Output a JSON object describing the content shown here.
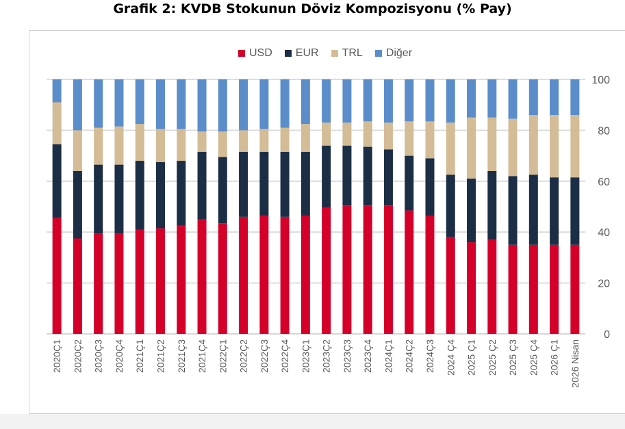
{
  "title": "Grafik 2: KVDB Stokunun Döviz Kompozisyonu (% Pay)",
  "chart_data": {
    "type": "bar",
    "stacked": true,
    "categories": [
      "2020Ç1",
      "2020Ç2",
      "2020Ç3",
      "2020Ç4",
      "2021Ç1",
      "2021Ç2",
      "2021Ç3",
      "2021Ç4",
      "2022Ç1",
      "2022Ç2",
      "2022Ç3",
      "2022Ç4",
      "2023Ç1",
      "2023Ç2",
      "2023Ç3",
      "2023Ç4",
      "2024Ç1",
      "2024Ç2",
      "2024Ç3",
      "2024 Ç4",
      "2025 Ç1",
      "2025 Ç2",
      "2025 Ç3",
      "2025 Ç4",
      "2026 Ç1",
      "2026 Nisan"
    ],
    "series": [
      {
        "name": "USD",
        "color": "#d4002a",
        "values": [
          45.5,
          37.5,
          39.5,
          39.5,
          41,
          41.5,
          42.5,
          45,
          43.5,
          46,
          46.5,
          46,
          46.5,
          49.5,
          50.5,
          50.5,
          50.5,
          48.5,
          46.5,
          38,
          36,
          37,
          35,
          35,
          35,
          35
        ]
      },
      {
        "name": "EUR",
        "color": "#1b2e45",
        "values": [
          29,
          26.5,
          27,
          27,
          27,
          26,
          25.5,
          26.5,
          26,
          25.5,
          25,
          25.5,
          25,
          24.5,
          23.5,
          23,
          22,
          21.5,
          22.5,
          24.5,
          25,
          27,
          27,
          27.5,
          26.5,
          26.5
        ]
      },
      {
        "name": "TRL",
        "color": "#d3bc96",
        "values": [
          16.5,
          16,
          14.5,
          15,
          14.5,
          13,
          12.5,
          8,
          10,
          8.5,
          9,
          9.5,
          11,
          9,
          9,
          10,
          10.5,
          13.5,
          14.5,
          20.5,
          24,
          21,
          22.5,
          23.5,
          24.5,
          24.5
        ]
      },
      {
        "name": "Diğer",
        "color": "#5b8dcb",
        "values": [
          9,
          20,
          19,
          18.5,
          17.5,
          19.5,
          19.5,
          20.5,
          20.5,
          20,
          19.5,
          19,
          17.5,
          17,
          17,
          16.5,
          17,
          16.5,
          16.5,
          17,
          15,
          15,
          15.5,
          14,
          14,
          14
        ]
      }
    ],
    "yticks": [
      0,
      20,
      40,
      60,
      80,
      100
    ],
    "ylim": [
      0,
      100
    ],
    "grid": true,
    "legend_position": "top"
  }
}
